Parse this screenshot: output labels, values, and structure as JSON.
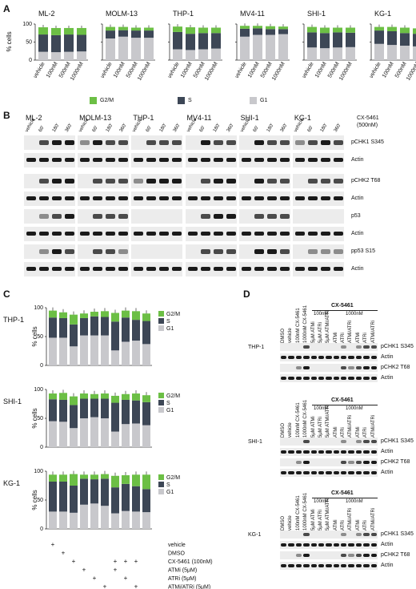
{
  "panel_labels": {
    "A": "A",
    "B": "B",
    "C": "C",
    "D": "D"
  },
  "colors": {
    "g2m": "#6cbf45",
    "s": "#3d4756",
    "g1": "#c8c8cc"
  },
  "panelA": {
    "ylabel": "% cells",
    "legend": [
      "G2/M",
      "S",
      "G1"
    ],
    "x_labels": [
      "vehicle",
      "100nM",
      "500nM",
      "1000nM"
    ]
  },
  "panelB": {
    "treatment_label": "CX-5461",
    "treatment_conc": "(500nM)",
    "time_labels": [
      "vehicle",
      "60'",
      "180'",
      "360'"
    ],
    "row_labels": [
      "pCHK1 S345",
      "Actin",
      "pCHK2 T68",
      "Actin",
      "p53",
      "Actin",
      "pp53 S15",
      "Actin"
    ]
  },
  "panelC": {
    "ylabel": "% cells",
    "legend": [
      "G2/M",
      "S",
      "G1"
    ],
    "treatments": [
      "vehicle",
      "DMSO",
      "CX-5461 (100nM)",
      "ATMi (5μM)",
      "ATRi (5μM)",
      "ATMi/ATRi (5μM)"
    ],
    "plus_matrix": [
      [
        1,
        0,
        0,
        0,
        0,
        0,
        0,
        0,
        0,
        0
      ],
      [
        0,
        1,
        0,
        0,
        0,
        0,
        0,
        0,
        0,
        0
      ],
      [
        0,
        0,
        1,
        0,
        0,
        0,
        1,
        1,
        1,
        0
      ],
      [
        0,
        0,
        0,
        1,
        0,
        0,
        1,
        0,
        0,
        0
      ],
      [
        0,
        0,
        0,
        0,
        1,
        0,
        0,
        1,
        0,
        0
      ],
      [
        0,
        0,
        0,
        0,
        0,
        1,
        0,
        0,
        1,
        0
      ]
    ]
  },
  "panelD": {
    "lane_labels": [
      "DMSO",
      "vehicle",
      "100nM CX-5461",
      "1000nM CX-5461",
      "5μM ATMi",
      "5μM ATRi",
      "5μM ATMi/ATRi",
      "ATMi",
      "ATRi",
      "ATMi/ATRi",
      "ATMi",
      "ATRi",
      "ATMi/ATRi"
    ],
    "group_title": "CX-5461",
    "group_100": "100nM",
    "group_1000": "1000nM",
    "row_labels": [
      "pCHK1 S345",
      "Actin",
      "pCHK2 T68",
      "Actin"
    ]
  },
  "chart_data": [
    {
      "type": "bar",
      "stacked": true,
      "panel": "A",
      "ylim": [
        0,
        100
      ],
      "yticks": [
        0,
        50,
        100
      ],
      "charts": [
        {
          "title": "ML-2",
          "categories": [
            "vehicle",
            "100nM",
            "500nM",
            "1000nM"
          ],
          "series": [
            {
              "name": "G1",
              "values": [
                23,
                22,
                23,
                24
              ]
            },
            {
              "name": "S",
              "values": [
                48,
                47,
                48,
                46
              ]
            },
            {
              "name": "G2/M",
              "values": [
                20,
                20,
                18,
                19
              ]
            }
          ]
        },
        {
          "title": "MOLM-13",
          "categories": [
            "vehicle",
            "100nM",
            "500nM",
            "1000nM"
          ],
          "series": [
            {
              "name": "G1",
              "values": [
                60,
                65,
                62,
                62
              ]
            },
            {
              "name": "S",
              "values": [
                22,
                18,
                20,
                20
              ]
            },
            {
              "name": "G2/M",
              "values": [
                10,
                9,
                8,
                8
              ]
            }
          ]
        },
        {
          "title": "THP-1",
          "categories": [
            "vehicle",
            "100nM",
            "500nM",
            "1000nM"
          ],
          "series": [
            {
              "name": "G1",
              "values": [
                30,
                28,
                30,
                32
              ]
            },
            {
              "name": "S",
              "values": [
                48,
                45,
                45,
                43
              ]
            },
            {
              "name": "G2/M",
              "values": [
                15,
                18,
                15,
                15
              ]
            }
          ]
        },
        {
          "title": "MV4-11",
          "categories": [
            "vehicle",
            "100nM",
            "500nM",
            "1000nM"
          ],
          "series": [
            {
              "name": "G1",
              "values": [
                65,
                70,
                70,
                72
              ]
            },
            {
              "name": "S",
              "values": [
                22,
                18,
                16,
                14
              ]
            },
            {
              "name": "G2/M",
              "values": [
                8,
                7,
                8,
                7
              ]
            }
          ]
        },
        {
          "title": "SHI-1",
          "categories": [
            "vehicle",
            "100nM",
            "500nM",
            "1000nM"
          ],
          "series": [
            {
              "name": "G1",
              "values": [
                35,
                33,
                35,
                36
              ]
            },
            {
              "name": "S",
              "values": [
                42,
                42,
                42,
                40
              ]
            },
            {
              "name": "G2/M",
              "values": [
                15,
                15,
                13,
                14
              ]
            }
          ]
        },
        {
          "title": "KG-1",
          "categories": [
            "vehicle",
            "100nM",
            "500nM",
            "1000nM"
          ],
          "series": [
            {
              "name": "G1",
              "values": [
                45,
                42,
                40,
                38
              ]
            },
            {
              "name": "S",
              "values": [
                37,
                38,
                35,
                35
              ]
            },
            {
              "name": "G2/M",
              "values": [
                10,
                12,
                15,
                15
              ]
            }
          ]
        }
      ]
    },
    {
      "type": "bar",
      "stacked": true,
      "panel": "C",
      "ylim": [
        0,
        100
      ],
      "yticks": [
        0,
        50,
        100
      ],
      "charts": [
        {
          "title": "THP-1",
          "series": [
            {
              "name": "G1",
              "values": [
                48,
                48,
                33,
                52,
                52,
                52,
                26,
                41,
                43,
                37
              ]
            },
            {
              "name": "S",
              "values": [
                35,
                34,
                38,
                30,
                33,
                32,
                50,
                42,
                36,
                40
              ]
            },
            {
              "name": "G2/M",
              "values": [
                12,
                10,
                17,
                8,
                8,
                10,
                15,
                12,
                15,
                13
              ]
            }
          ]
        },
        {
          "title": "SHI-1",
          "series": [
            {
              "name": "G1",
              "values": [
                45,
                44,
                33,
                50,
                52,
                50,
                27,
                40,
                41,
                38
              ]
            },
            {
              "name": "S",
              "values": [
                38,
                38,
                40,
                34,
                32,
                34,
                50,
                42,
                40,
                40
              ]
            },
            {
              "name": "G2/M",
              "values": [
                10,
                12,
                15,
                9,
                8,
                9,
                12,
                10,
                12,
                12
              ]
            }
          ]
        },
        {
          "title": "KG-1",
          "series": [
            {
              "name": "G1",
              "values": [
                30,
                30,
                28,
                42,
                44,
                40,
                27,
                31,
                30,
                29
              ]
            },
            {
              "name": "S",
              "values": [
                52,
                52,
                47,
                45,
                42,
                47,
                45,
                47,
                44,
                40
              ]
            },
            {
              "name": "G2/M",
              "values": [
                12,
                12,
                20,
                7,
                8,
                8,
                20,
                15,
                20,
                25
              ]
            }
          ]
        }
      ]
    }
  ]
}
